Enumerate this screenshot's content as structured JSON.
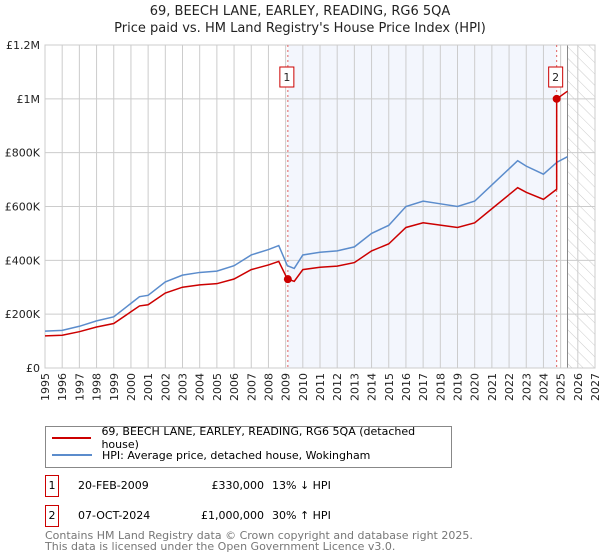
{
  "chart_data": {
    "type": "line",
    "title": "69, BEECH LANE, EARLEY, READING, RG6 5QA",
    "subtitle": "Price paid vs. HM Land Registry's House Price Index (HPI)",
    "xlim": [
      1995,
      2027
    ],
    "ylim": [
      0,
      1200000
    ],
    "x_ticks": [
      "1995",
      "1996",
      "1997",
      "1998",
      "1999",
      "2000",
      "2001",
      "2002",
      "2003",
      "2004",
      "2005",
      "2006",
      "2007",
      "2008",
      "2009",
      "2010",
      "2011",
      "2012",
      "2013",
      "2014",
      "2015",
      "2016",
      "2017",
      "2018",
      "2019",
      "2020",
      "2021",
      "2022",
      "2023",
      "2024",
      "2025",
      "2026",
      "2027"
    ],
    "y_ticks": [
      {
        "v": 0,
        "label": "£0"
      },
      {
        "v": 200000,
        "label": "£200K"
      },
      {
        "v": 400000,
        "label": "£400K"
      },
      {
        "v": 600000,
        "label": "£600K"
      },
      {
        "v": 800000,
        "label": "£800K"
      },
      {
        "v": 1000000,
        "label": "£1M"
      },
      {
        "v": 1200000,
        "label": "£1.2M"
      }
    ],
    "shaded_range": [
      2009.13,
      2024.77
    ],
    "forecast_from": 2025.4,
    "series": [
      {
        "name": "69, BEECH LANE, EARLEY, READING, RG6 5QA (detached house)",
        "color": "#cc0000"
      },
      {
        "name": "HPI: Average price, detached house, Wokingham",
        "color": "#5b8ccc",
        "x": [
          1995,
          1996,
          1997,
          1998,
          1999,
          2000,
          2000.5,
          2001,
          2002,
          2003,
          2004,
          2005,
          2006,
          2007,
          2008,
          2008.6,
          2009.1,
          2009.5,
          2010,
          2011,
          2012,
          2013,
          2014,
          2015,
          2016,
          2017,
          2018,
          2019,
          2020,
          2021,
          2022,
          2022.5,
          2023,
          2024,
          2024.8,
          2025.4
        ],
        "values": [
          137000,
          140000,
          155000,
          175000,
          190000,
          240000,
          265000,
          270000,
          320000,
          345000,
          355000,
          360000,
          380000,
          420000,
          440000,
          455000,
          380000,
          370000,
          420000,
          430000,
          435000,
          450000,
          500000,
          530000,
          600000,
          620000,
          610000,
          600000,
          620000,
          680000,
          740000,
          770000,
          750000,
          720000,
          765000,
          785000
        ]
      }
    ],
    "sales": [
      {
        "id": "1",
        "date": "20-FEB-2009",
        "x": 2009.13,
        "price": "£330,000",
        "value": 330000,
        "hpi_diff": "13% ↓ HPI"
      },
      {
        "id": "2",
        "date": "07-OCT-2024",
        "x": 2024.77,
        "price": "£1,000,000",
        "value": 1000000,
        "hpi_diff": "30% ↑ HPI"
      }
    ]
  },
  "footer": {
    "line1": "Contains HM Land Registry data © Crown copyright and database right 2025.",
    "line2": "This data is licensed under the Open Government Licence v3.0."
  }
}
